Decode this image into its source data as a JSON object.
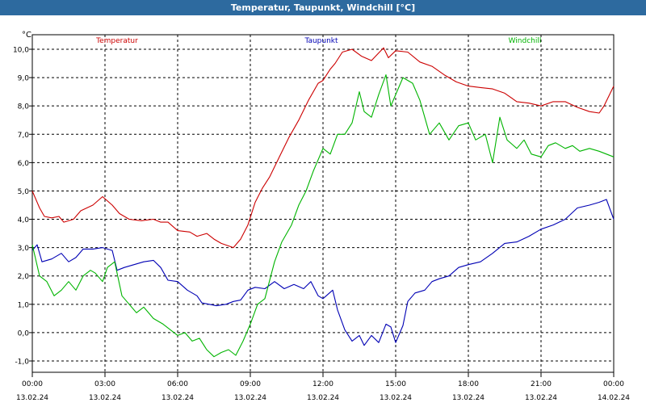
{
  "window": {
    "title": "Temperatur, Taupunkt, Windchill [°C]"
  },
  "chart_data": {
    "type": "line",
    "title": "Temperatur, Taupunkt, Windchill [°C]",
    "ylabel": "°C",
    "xlabel": "",
    "ylim": [
      -1.0,
      10.0
    ],
    "xlim": [
      0,
      24
    ],
    "grid": true,
    "legend_placement": "top",
    "y_ticks": [
      "-1,0",
      "0,0",
      "1,0",
      "2,0",
      "3,0",
      "4,0",
      "5,0",
      "6,0",
      "7,0",
      "8,0",
      "9,0",
      "10,0"
    ],
    "x_ticks": [
      {
        "time": "00:00",
        "date": "13.02.24"
      },
      {
        "time": "03:00",
        "date": "13.02.24"
      },
      {
        "time": "06:00",
        "date": "13.02.24"
      },
      {
        "time": "09:00",
        "date": "13.02.24"
      },
      {
        "time": "12:00",
        "date": "13.02.24"
      },
      {
        "time": "15:00",
        "date": "13.02.24"
      },
      {
        "time": "18:00",
        "date": "13.02.24"
      },
      {
        "time": "21:00",
        "date": "13.02.24"
      },
      {
        "time": "00:00",
        "date": "14.02.24"
      }
    ],
    "series": [
      {
        "name": "Temperatur",
        "color": "#cc0000",
        "points": [
          [
            0.0,
            5.0
          ],
          [
            0.3,
            4.4
          ],
          [
            0.5,
            4.1
          ],
          [
            0.8,
            4.05
          ],
          [
            1.1,
            4.1
          ],
          [
            1.3,
            3.9
          ],
          [
            1.7,
            4.0
          ],
          [
            2.0,
            4.3
          ],
          [
            2.5,
            4.5
          ],
          [
            2.9,
            4.8
          ],
          [
            3.3,
            4.5
          ],
          [
            3.6,
            4.2
          ],
          [
            4.0,
            4.0
          ],
          [
            4.5,
            3.95
          ],
          [
            5.0,
            4.0
          ],
          [
            5.3,
            3.9
          ],
          [
            5.6,
            3.9
          ],
          [
            6.0,
            3.6
          ],
          [
            6.5,
            3.55
          ],
          [
            6.8,
            3.4
          ],
          [
            7.2,
            3.5
          ],
          [
            7.5,
            3.3
          ],
          [
            7.8,
            3.15
          ],
          [
            8.3,
            3.0
          ],
          [
            8.6,
            3.3
          ],
          [
            8.9,
            3.8
          ],
          [
            9.2,
            4.6
          ],
          [
            9.5,
            5.1
          ],
          [
            9.8,
            5.5
          ],
          [
            10.2,
            6.2
          ],
          [
            10.6,
            6.9
          ],
          [
            11.0,
            7.5
          ],
          [
            11.4,
            8.2
          ],
          [
            11.8,
            8.8
          ],
          [
            12.0,
            8.9
          ],
          [
            12.3,
            9.3
          ],
          [
            12.5,
            9.5
          ],
          [
            12.8,
            9.9
          ],
          [
            13.2,
            10.0
          ],
          [
            13.6,
            9.75
          ],
          [
            14.0,
            9.6
          ],
          [
            14.5,
            10.05
          ],
          [
            14.7,
            9.7
          ],
          [
            15.0,
            9.95
          ],
          [
            15.5,
            9.9
          ],
          [
            16.0,
            9.55
          ],
          [
            16.5,
            9.4
          ],
          [
            17.0,
            9.1
          ],
          [
            17.5,
            8.85
          ],
          [
            18.0,
            8.7
          ],
          [
            18.5,
            8.65
          ],
          [
            19.0,
            8.6
          ],
          [
            19.5,
            8.45
          ],
          [
            20.0,
            8.15
          ],
          [
            20.5,
            8.1
          ],
          [
            21.0,
            8.0
          ],
          [
            21.5,
            8.15
          ],
          [
            22.0,
            8.15
          ],
          [
            22.5,
            7.95
          ],
          [
            23.0,
            7.8
          ],
          [
            23.4,
            7.75
          ],
          [
            23.6,
            8.0
          ],
          [
            24.0,
            8.7
          ]
        ]
      },
      {
        "name": "Taupunkt",
        "color": "#0000b4",
        "points": [
          [
            0.0,
            2.9
          ],
          [
            0.2,
            3.1
          ],
          [
            0.4,
            2.5
          ],
          [
            0.8,
            2.6
          ],
          [
            1.2,
            2.8
          ],
          [
            1.5,
            2.5
          ],
          [
            1.8,
            2.65
          ],
          [
            2.1,
            2.95
          ],
          [
            2.5,
            2.95
          ],
          [
            2.9,
            3.0
          ],
          [
            3.3,
            2.9
          ],
          [
            3.5,
            2.2
          ],
          [
            3.8,
            2.3
          ],
          [
            4.2,
            2.4
          ],
          [
            4.6,
            2.5
          ],
          [
            5.0,
            2.55
          ],
          [
            5.3,
            2.3
          ],
          [
            5.6,
            1.85
          ],
          [
            6.0,
            1.8
          ],
          [
            6.4,
            1.5
          ],
          [
            6.8,
            1.3
          ],
          [
            7.0,
            1.05
          ],
          [
            7.3,
            1.0
          ],
          [
            7.6,
            0.95
          ],
          [
            8.0,
            1.0
          ],
          [
            8.3,
            1.1
          ],
          [
            8.6,
            1.15
          ],
          [
            8.9,
            1.5
          ],
          [
            9.2,
            1.6
          ],
          [
            9.6,
            1.55
          ],
          [
            10.0,
            1.8
          ],
          [
            10.4,
            1.55
          ],
          [
            10.8,
            1.7
          ],
          [
            11.2,
            1.55
          ],
          [
            11.5,
            1.8
          ],
          [
            11.8,
            1.3
          ],
          [
            12.0,
            1.2
          ],
          [
            12.4,
            1.5
          ],
          [
            12.6,
            0.8
          ],
          [
            12.9,
            0.1
          ],
          [
            13.2,
            -0.3
          ],
          [
            13.5,
            -0.1
          ],
          [
            13.7,
            -0.45
          ],
          [
            14.0,
            -0.1
          ],
          [
            14.3,
            -0.35
          ],
          [
            14.6,
            0.3
          ],
          [
            14.8,
            0.2
          ],
          [
            15.0,
            -0.35
          ],
          [
            15.3,
            0.25
          ],
          [
            15.5,
            1.1
          ],
          [
            15.8,
            1.4
          ],
          [
            16.2,
            1.5
          ],
          [
            16.5,
            1.8
          ],
          [
            16.8,
            1.9
          ],
          [
            17.2,
            2.0
          ],
          [
            17.6,
            2.3
          ],
          [
            18.0,
            2.4
          ],
          [
            18.5,
            2.5
          ],
          [
            19.0,
            2.8
          ],
          [
            19.5,
            3.15
          ],
          [
            20.0,
            3.2
          ],
          [
            20.5,
            3.4
          ],
          [
            21.0,
            3.65
          ],
          [
            21.5,
            3.8
          ],
          [
            22.0,
            4.0
          ],
          [
            22.5,
            4.4
          ],
          [
            23.0,
            4.5
          ],
          [
            23.4,
            4.6
          ],
          [
            23.7,
            4.7
          ],
          [
            24.0,
            4.0
          ]
        ]
      },
      {
        "name": "Windchill",
        "color": "#00b400",
        "points": [
          [
            0.0,
            3.1
          ],
          [
            0.3,
            2.0
          ],
          [
            0.6,
            1.8
          ],
          [
            0.9,
            1.3
          ],
          [
            1.2,
            1.5
          ],
          [
            1.5,
            1.8
          ],
          [
            1.8,
            1.5
          ],
          [
            2.1,
            2.0
          ],
          [
            2.4,
            2.2
          ],
          [
            2.6,
            2.1
          ],
          [
            2.9,
            1.8
          ],
          [
            3.1,
            2.3
          ],
          [
            3.4,
            2.5
          ],
          [
            3.7,
            1.3
          ],
          [
            4.0,
            1.0
          ],
          [
            4.3,
            0.7
          ],
          [
            4.6,
            0.9
          ],
          [
            5.0,
            0.5
          ],
          [
            5.4,
            0.3
          ],
          [
            5.7,
            0.1
          ],
          [
            6.0,
            -0.1
          ],
          [
            6.3,
            0.0
          ],
          [
            6.6,
            -0.3
          ],
          [
            6.9,
            -0.2
          ],
          [
            7.2,
            -0.6
          ],
          [
            7.5,
            -0.85
          ],
          [
            7.8,
            -0.7
          ],
          [
            8.1,
            -0.6
          ],
          [
            8.4,
            -0.8
          ],
          [
            8.7,
            -0.3
          ],
          [
            9.0,
            0.3
          ],
          [
            9.3,
            1.0
          ],
          [
            9.6,
            1.2
          ],
          [
            10.0,
            2.5
          ],
          [
            10.3,
            3.2
          ],
          [
            10.7,
            3.8
          ],
          [
            11.0,
            4.5
          ],
          [
            11.3,
            5.0
          ],
          [
            11.6,
            5.7
          ],
          [
            12.0,
            6.5
          ],
          [
            12.3,
            6.3
          ],
          [
            12.6,
            7.0
          ],
          [
            12.9,
            7.0
          ],
          [
            13.2,
            7.4
          ],
          [
            13.5,
            8.5
          ],
          [
            13.7,
            7.8
          ],
          [
            14.0,
            7.6
          ],
          [
            14.3,
            8.4
          ],
          [
            14.6,
            9.1
          ],
          [
            14.8,
            8.0
          ],
          [
            15.0,
            8.4
          ],
          [
            15.3,
            9.0
          ],
          [
            15.7,
            8.8
          ],
          [
            16.0,
            8.2
          ],
          [
            16.4,
            7.0
          ],
          [
            16.8,
            7.4
          ],
          [
            17.2,
            6.8
          ],
          [
            17.6,
            7.3
          ],
          [
            18.0,
            7.4
          ],
          [
            18.3,
            6.8
          ],
          [
            18.7,
            7.0
          ],
          [
            19.0,
            6.0
          ],
          [
            19.3,
            7.6
          ],
          [
            19.6,
            6.8
          ],
          [
            20.0,
            6.5
          ],
          [
            20.3,
            6.8
          ],
          [
            20.6,
            6.3
          ],
          [
            21.0,
            6.2
          ],
          [
            21.3,
            6.6
          ],
          [
            21.6,
            6.7
          ],
          [
            22.0,
            6.5
          ],
          [
            22.3,
            6.6
          ],
          [
            22.6,
            6.4
          ],
          [
            23.0,
            6.5
          ],
          [
            23.4,
            6.4
          ],
          [
            23.7,
            6.3
          ],
          [
            24.0,
            6.2
          ]
        ]
      }
    ]
  }
}
